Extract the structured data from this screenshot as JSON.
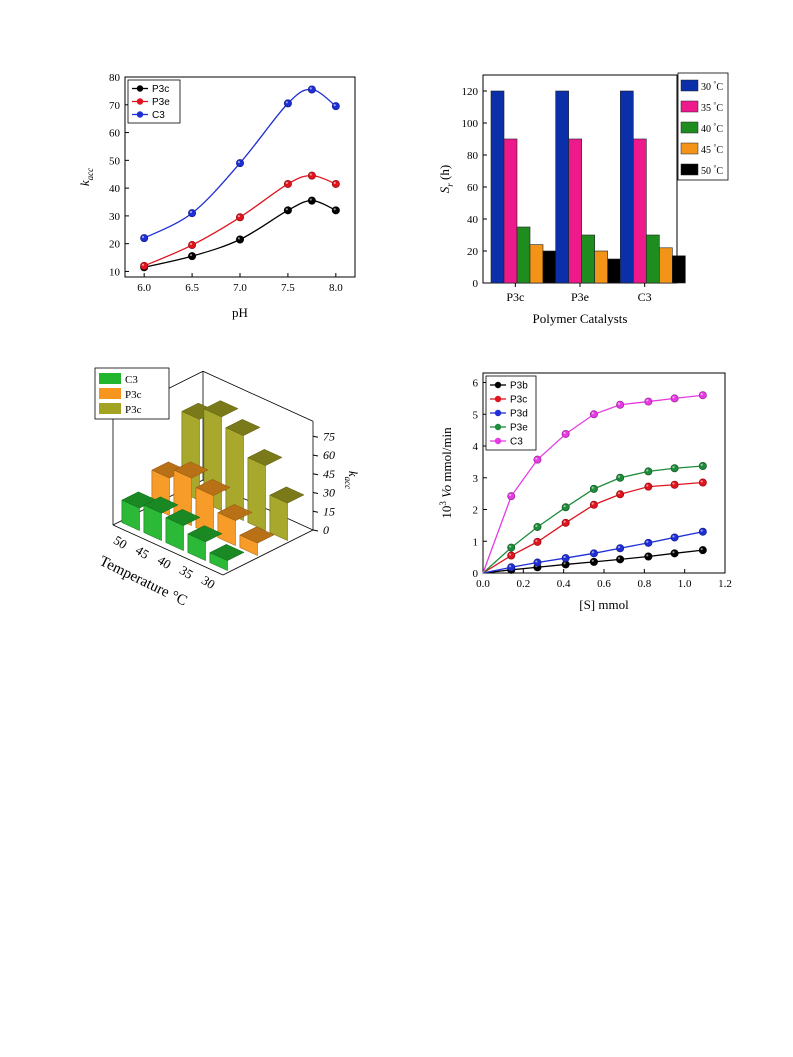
{
  "chart_data": [
    {
      "id": "ph",
      "type": "line",
      "xlabel": "pH",
      "ylabel": "k_acc",
      "xlim": [
        5.8,
        8.2
      ],
      "ylim": [
        8,
        80
      ],
      "xticks": [
        "6.0",
        "6.5",
        "7.0",
        "7.5",
        "8.0"
      ],
      "xtick_values": [
        6.0,
        6.5,
        7.0,
        7.5,
        8.0
      ],
      "yticks": [
        10,
        20,
        30,
        40,
        50,
        60,
        70,
        80
      ],
      "legend": "top-left",
      "x": [
        6.0,
        6.5,
        7.0,
        7.5,
        7.75,
        8.0
      ],
      "series": [
        {
          "name": "P3c",
          "color": "#000000",
          "values": [
            11.5,
            15.5,
            21.5,
            32,
            35.5,
            32
          ]
        },
        {
          "name": "P3e",
          "color": "#e0141e",
          "values": [
            12,
            19.5,
            29.5,
            41.5,
            44.5,
            41.5
          ]
        },
        {
          "name": "C3",
          "color": "#1f2fd6",
          "values": [
            22,
            31,
            49,
            70.5,
            75.5,
            69.5
          ]
        }
      ]
    },
    {
      "id": "sr",
      "type": "bar",
      "xlabel": "Polymer Catalysts",
      "ylabel": "S_r (h)",
      "ylim": [
        0,
        130
      ],
      "yticks": [
        0,
        20,
        40,
        60,
        80,
        100,
        120
      ],
      "legend": "top-right",
      "categories": [
        "P3c",
        "P3e",
        "C3"
      ],
      "series": [
        {
          "name": "30 °C",
          "color": "#0a2fa8",
          "values": [
            120,
            120,
            120
          ]
        },
        {
          "name": "35 °C",
          "color": "#ee1a8c",
          "values": [
            90,
            90,
            90
          ]
        },
        {
          "name": "40 °C",
          "color": "#1e8c1e",
          "values": [
            35,
            30,
            30
          ]
        },
        {
          "name": "45 °C",
          "color": "#f39419",
          "values": [
            24,
            20,
            22
          ]
        },
        {
          "name": "50 °C",
          "color": "#000000",
          "values": [
            20,
            15,
            17
          ]
        }
      ]
    },
    {
      "id": "temp3d",
      "type": "bar",
      "xlabel": "Temperature °C",
      "ylabel": "k_acc",
      "zticks": [
        "0",
        "15",
        "30",
        "45",
        "60",
        "75"
      ],
      "ztick_values": [
        0,
        15,
        30,
        45,
        60,
        75
      ],
      "categories": [
        "50",
        "45",
        "40",
        "35",
        "30"
      ],
      "legend": "top-left",
      "series": [
        {
          "name": "C3",
          "color": "#22b52e",
          "values": [
            18,
            22,
            20,
            15,
            8
          ]
        },
        {
          "name": "P3c",
          "color": "#f7961e",
          "values": [
            30,
            38,
            32,
            20,
            10
          ]
        },
        {
          "name": "P3c",
          "color": "#a3a322",
          "values": [
            65,
            75,
            68,
            52,
            30
          ]
        }
      ]
    },
    {
      "id": "kinetics",
      "type": "line",
      "xlabel": "[S] mmol",
      "ylabel": "10^3 Vo mmol/min",
      "xlim": [
        0.0,
        1.2
      ],
      "ylim": [
        0,
        6.3
      ],
      "xticks": [
        "0.0",
        "0.2",
        "0.4",
        "0.6",
        "0.8",
        "1.0",
        "1.2"
      ],
      "xtick_values": [
        0.0,
        0.2,
        0.4,
        0.6,
        0.8,
        1.0,
        1.2
      ],
      "yticks": [
        0,
        1,
        2,
        3,
        4,
        5,
        6
      ],
      "legend": "top-left",
      "x": [
        0.0,
        0.14,
        0.27,
        0.41,
        0.55,
        0.68,
        0.82,
        0.95,
        1.09
      ],
      "series": [
        {
          "name": "P3b",
          "color": "#000000",
          "values": [
            0,
            0.1,
            0.18,
            0.27,
            0.35,
            0.43,
            0.52,
            0.62,
            0.72
          ]
        },
        {
          "name": "P3c",
          "color": "#e0141e",
          "values": [
            0,
            0.55,
            0.98,
            1.58,
            2.15,
            2.48,
            2.72,
            2.78,
            2.85
          ]
        },
        {
          "name": "P3d",
          "color": "#1f2fd6",
          "values": [
            0,
            0.18,
            0.33,
            0.47,
            0.62,
            0.78,
            0.95,
            1.12,
            1.3
          ]
        },
        {
          "name": "P3e",
          "color": "#1e8c3a",
          "values": [
            0,
            0.8,
            1.45,
            2.07,
            2.65,
            3.0,
            3.2,
            3.3,
            3.37
          ]
        },
        {
          "name": "C3",
          "color": "#e63be3",
          "values": [
            0,
            2.42,
            3.57,
            4.38,
            5.0,
            5.3,
            5.4,
            5.5,
            5.6
          ]
        }
      ]
    }
  ]
}
